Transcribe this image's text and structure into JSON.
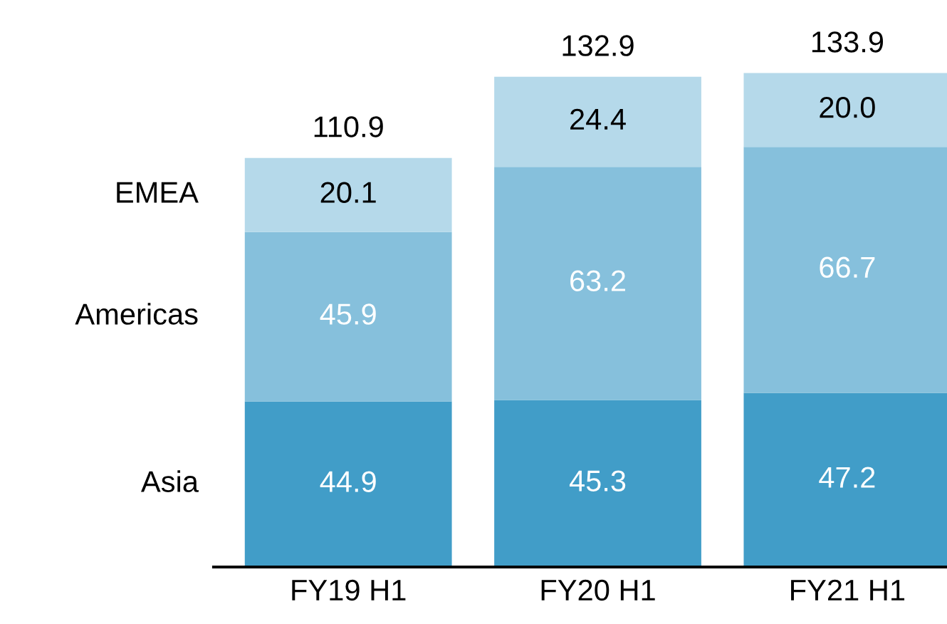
{
  "chart_data": {
    "type": "bar",
    "stacked": true,
    "categories": [
      "FY19 H1",
      "FY20 H1",
      "FY21 H1"
    ],
    "series": [
      {
        "name": "Asia",
        "color": "#419dc8",
        "values": [
          44.9,
          45.3,
          47.2
        ],
        "value_labels": [
          "44.9",
          "45.3",
          "47.2"
        ]
      },
      {
        "name": "Americas",
        "color": "#86c0dc",
        "values": [
          45.9,
          63.2,
          66.7
        ],
        "value_labels": [
          "45.9",
          "63.2",
          "66.7"
        ]
      },
      {
        "name": "EMEA",
        "color": "#b5d9ea",
        "values": [
          20.1,
          24.4,
          20.0
        ],
        "value_labels": [
          "20.1",
          "24.4",
          "20.0"
        ]
      }
    ],
    "totals": [
      "110.9",
      "132.9",
      "133.9"
    ],
    "grid": false,
    "legend": false
  }
}
